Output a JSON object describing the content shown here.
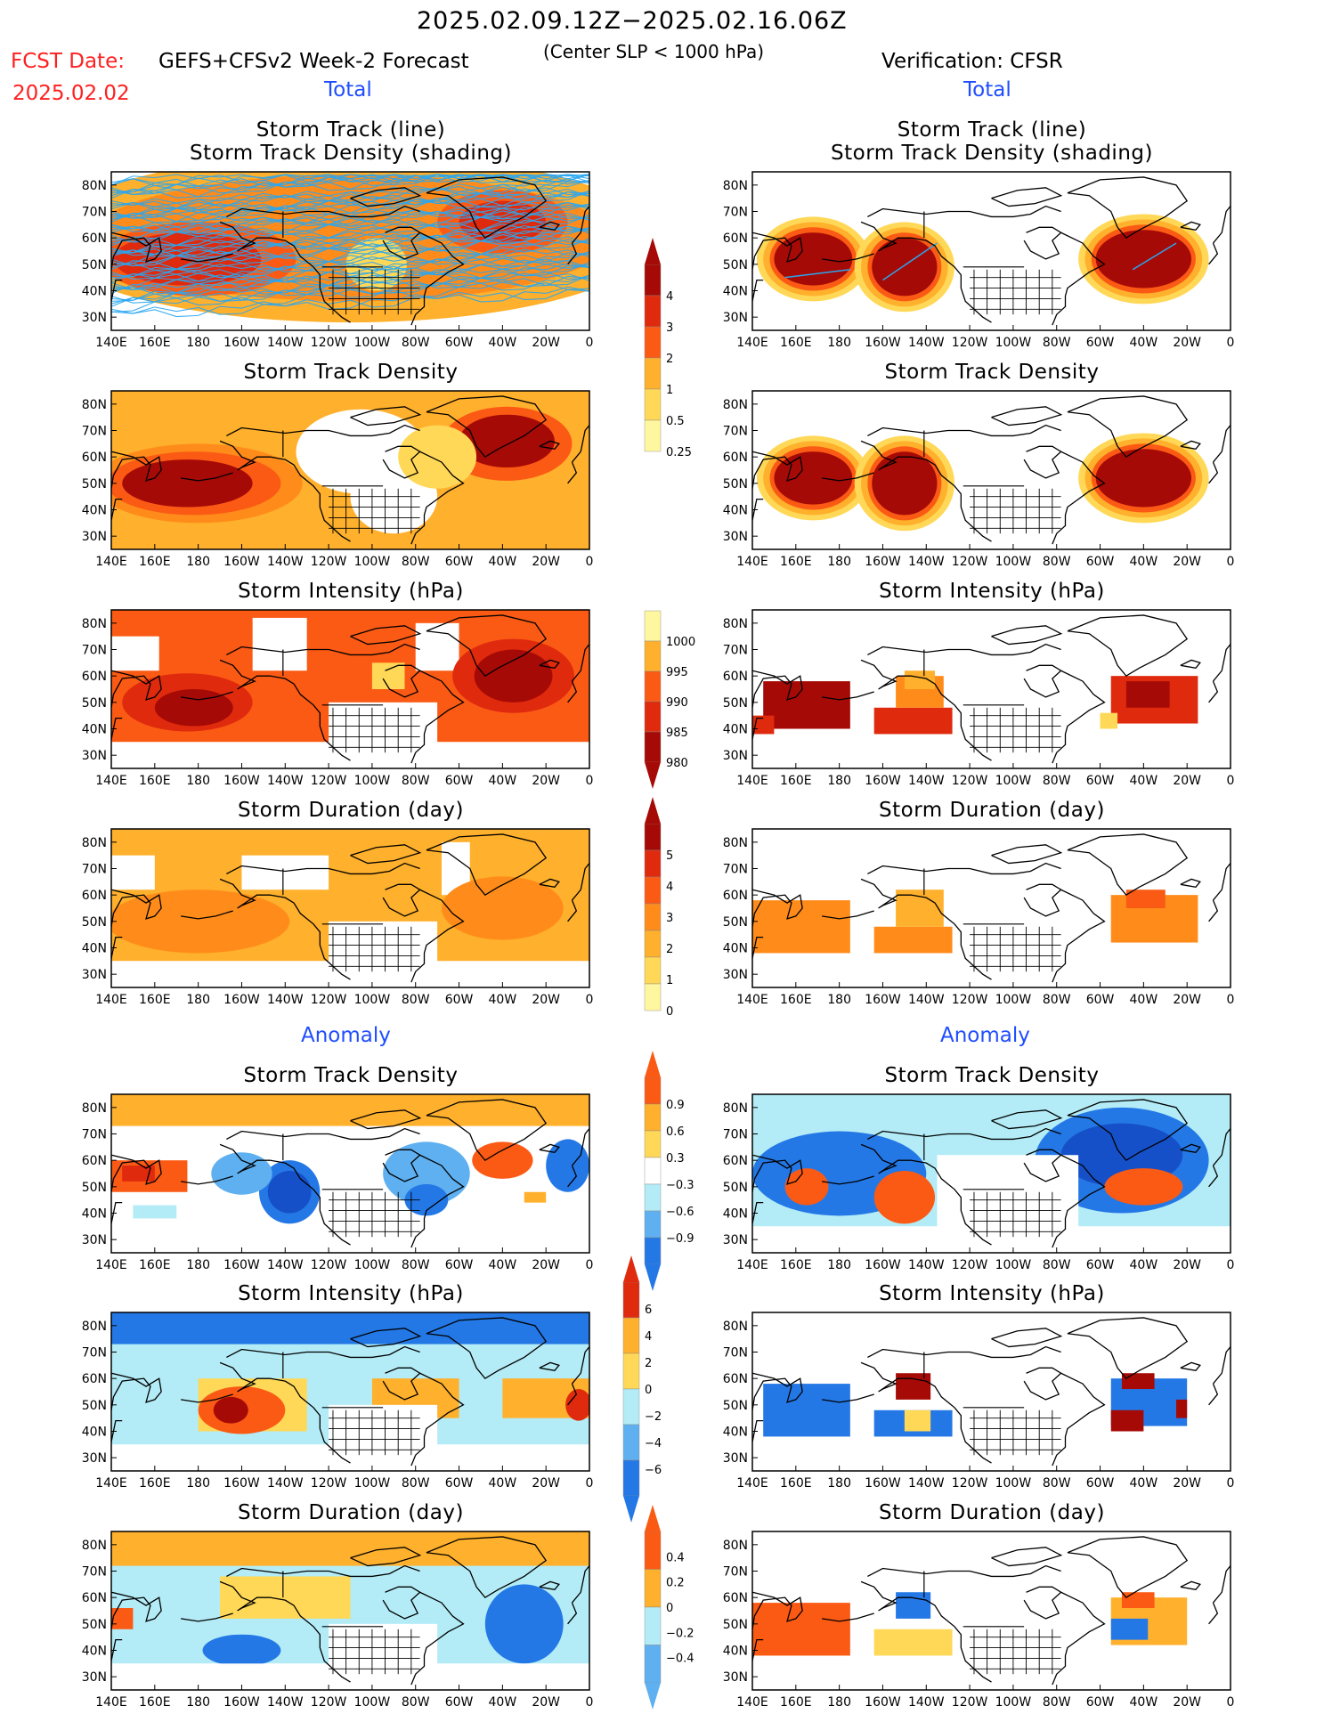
{
  "header": {
    "period": "2025.02.09.12Z−2025.02.16.06Z",
    "fcst_date_label": "FCST Date:",
    "fcst_date_value": "2025.02.02",
    "model": "GEFS+CFSv2 Week-2 Forecast",
    "criterion": "(Center SLP < 1000 hPa)",
    "verification": "Verification: CFSR"
  },
  "sections": {
    "total_left": "Total",
    "total_right": "Total",
    "anomaly_left": "Anomaly",
    "anomaly_right": "Anomaly"
  },
  "panel_titles": {
    "track_line": "Storm Track (line)",
    "track_shading": "Storm Track Density (shading)",
    "density": "Storm Track Density",
    "intensity": "Storm Intensity (hPa)",
    "duration": "Storm Duration (day)"
  },
  "axes": {
    "lat_ticks": [
      "80N",
      "70N",
      "60N",
      "50N",
      "40N",
      "30N"
    ],
    "lon_ticks": [
      "140E",
      "160E",
      "180",
      "160W",
      "140W",
      "120W",
      "100W",
      "80W",
      "60W",
      "40W",
      "20W",
      "0"
    ]
  },
  "colors": {
    "pale_yellow": "#fff6a0",
    "yellow": "#ffd857",
    "light_orange": "#ffb02c",
    "orange": "#ff8c1a",
    "orange_red": "#fb5a14",
    "red": "#df2a0e",
    "dark_red": "#a60a06",
    "light_blue": "#b3ecf7",
    "mid_blue": "#5fb0f0",
    "blue": "#2478e6",
    "dark_blue": "#1550c8",
    "track_line": "#2aa6f0"
  },
  "chart_data": [
    {
      "type": "heatmap",
      "panel": "forecast-total-track",
      "title": "Storm Track (line) Storm Track Density (shading)",
      "colorbar": {
        "levels": [
          0.25,
          0.5,
          1,
          2,
          3,
          4
        ]
      }
    },
    {
      "type": "heatmap",
      "panel": "verification-total-track",
      "title": "Storm Track (line) Storm Track Density (shading)",
      "colorbar": {
        "levels": [
          0.25,
          0.5,
          1,
          2,
          3,
          4
        ]
      }
    },
    {
      "type": "heatmap",
      "panel": "forecast-total-density",
      "title": "Storm Track Density",
      "colorbar": {
        "levels": [
          0.25,
          0.5,
          1,
          2,
          3,
          4
        ]
      }
    },
    {
      "type": "heatmap",
      "panel": "verification-total-density",
      "title": "Storm Track Density",
      "colorbar": {
        "levels": [
          0.25,
          0.5,
          1,
          2,
          3,
          4
        ]
      }
    },
    {
      "type": "heatmap",
      "panel": "forecast-total-intensity",
      "title": "Storm Intensity (hPa)",
      "colorbar": {
        "levels": [
          1000,
          995,
          990,
          985,
          980
        ]
      }
    },
    {
      "type": "heatmap",
      "panel": "verification-total-intensity",
      "title": "Storm Intensity (hPa)",
      "colorbar": {
        "levels": [
          1000,
          995,
          990,
          985,
          980
        ]
      }
    },
    {
      "type": "heatmap",
      "panel": "forecast-total-duration",
      "title": "Storm Duration (day)",
      "colorbar": {
        "levels": [
          5,
          4,
          3,
          2,
          1,
          0
        ]
      }
    },
    {
      "type": "heatmap",
      "panel": "verification-total-duration",
      "title": "Storm Duration (day)",
      "colorbar": {
        "levels": [
          5,
          4,
          3,
          2,
          1,
          0
        ]
      }
    },
    {
      "type": "heatmap",
      "panel": "forecast-anomaly-density",
      "title": "Storm Track Density",
      "colorbar": {
        "levels": [
          0.9,
          0.6,
          0.3,
          -0.3,
          -0.6,
          -0.9
        ]
      }
    },
    {
      "type": "heatmap",
      "panel": "verification-anomaly-density",
      "title": "Storm Track Density",
      "colorbar": {
        "levels": [
          0.9,
          0.6,
          0.3,
          -0.3,
          -0.6,
          -0.9
        ]
      }
    },
    {
      "type": "heatmap",
      "panel": "forecast-anomaly-intensity",
      "title": "Storm Intensity (hPa)",
      "colorbar": {
        "levels": [
          6,
          4,
          2,
          0,
          -2,
          -4,
          -6
        ]
      }
    },
    {
      "type": "heatmap",
      "panel": "verification-anomaly-intensity",
      "title": "Storm Intensity (hPa)",
      "colorbar": {
        "levels": [
          6,
          4,
          2,
          0,
          -2,
          -4,
          -6
        ]
      }
    },
    {
      "type": "heatmap",
      "panel": "forecast-anomaly-duration",
      "title": "Storm Duration (day)",
      "colorbar": {
        "levels": [
          0.4,
          0.2,
          0,
          -0.2,
          -0.4
        ]
      }
    },
    {
      "type": "heatmap",
      "panel": "verification-anomaly-duration",
      "title": "Storm Duration (day)",
      "colorbar": {
        "levels": [
          0.4,
          0.2,
          0,
          -0.2,
          -0.4
        ]
      }
    }
  ],
  "colorbars": {
    "density": [
      "4",
      "3",
      "2",
      "1",
      "0.5",
      "0.25"
    ],
    "intensity": [
      "1000",
      "995",
      "990",
      "985",
      "980"
    ],
    "duration": [
      "5",
      "4",
      "3",
      "2",
      "1",
      "0"
    ],
    "anom_density": [
      "0.9",
      "0.6",
      "0.3",
      "−0.3",
      "−0.6",
      "−0.9"
    ],
    "anom_intensity": [
      "6",
      "4",
      "2",
      "0",
      "−2",
      "−4",
      "−6"
    ],
    "anom_duration": [
      "0.4",
      "0.2",
      "0",
      "−0.2",
      "−0.4"
    ]
  }
}
